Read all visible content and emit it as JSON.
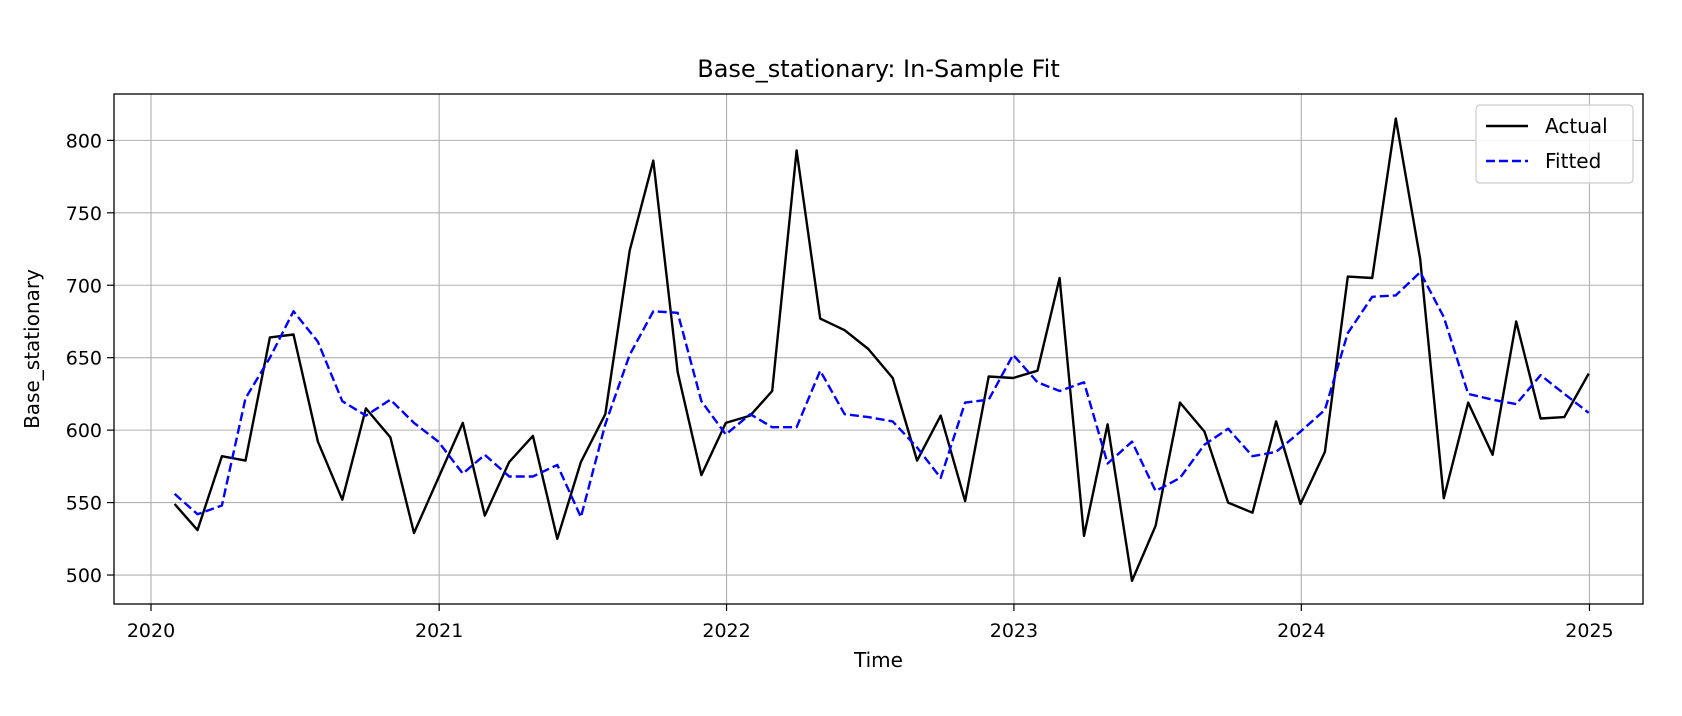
{
  "chart_data": {
    "type": "line",
    "title": "Base_stationary: In-Sample Fit",
    "xlabel": "Time",
    "ylabel": "Base_stationary",
    "x_axis": {
      "type": "date",
      "range": [
        "2019-11-15",
        "2025-03-10"
      ],
      "ticks": [
        "2020-01-01",
        "2021-01-01",
        "2022-01-01",
        "2023-01-01",
        "2024-01-01",
        "2025-01-01"
      ],
      "tick_labels": [
        "2020",
        "2021",
        "2022",
        "2023",
        "2024",
        "2025"
      ]
    },
    "y_axis": {
      "range": [
        480,
        832
      ],
      "ticks": [
        500,
        550,
        600,
        650,
        700,
        750,
        800
      ],
      "tick_labels": [
        "500",
        "550",
        "600",
        "650",
        "700",
        "750",
        "800"
      ]
    },
    "grid": true,
    "legend": {
      "placement": "top-right"
    },
    "x": [
      "2020-01-31",
      "2020-02-29",
      "2020-03-31",
      "2020-04-30",
      "2020-05-31",
      "2020-06-30",
      "2020-07-31",
      "2020-08-31",
      "2020-09-30",
      "2020-10-31",
      "2020-11-30",
      "2020-12-31",
      "2021-01-31",
      "2021-02-28",
      "2021-03-31",
      "2021-04-30",
      "2021-05-31",
      "2021-06-30",
      "2021-07-31",
      "2021-08-31",
      "2021-09-30",
      "2021-10-31",
      "2021-11-30",
      "2021-12-31",
      "2022-01-31",
      "2022-02-28",
      "2022-03-31",
      "2022-04-30",
      "2022-05-31",
      "2022-06-30",
      "2022-07-31",
      "2022-08-31",
      "2022-09-30",
      "2022-10-31",
      "2022-11-30",
      "2022-12-31",
      "2023-01-31",
      "2023-02-28",
      "2023-03-31",
      "2023-04-30",
      "2023-05-31",
      "2023-06-30",
      "2023-07-31",
      "2023-08-31",
      "2023-09-30",
      "2023-10-31",
      "2023-11-30",
      "2023-12-31",
      "2024-01-31",
      "2024-02-29",
      "2024-03-31",
      "2024-04-30",
      "2024-05-31",
      "2024-06-30",
      "2024-07-31",
      "2024-08-31",
      "2024-09-30",
      "2024-10-31",
      "2024-11-30",
      "2024-12-31"
    ],
    "series": [
      {
        "name": "Actual",
        "color": "#000000",
        "style": "solid",
        "values": [
          549,
          531,
          582,
          579,
          664,
          666,
          592,
          552,
          615,
          595,
          529,
          567,
          605,
          541,
          578,
          596,
          525,
          578,
          611,
          724,
          786,
          640,
          569,
          605,
          610,
          627,
          793,
          677,
          669,
          656,
          636,
          579,
          610,
          551,
          637,
          636,
          641,
          705,
          527,
          604,
          496,
          534,
          619,
          599,
          550,
          543,
          606,
          549,
          585,
          706,
          705,
          815,
          718,
          553,
          619,
          583,
          675,
          608,
          609,
          639
        ]
      },
      {
        "name": "Fitted",
        "color": "#0000ff",
        "style": "dashed",
        "values": [
          556,
          542,
          548,
          622,
          650,
          682,
          661,
          620,
          610,
          621,
          605,
          592,
          570,
          583,
          568,
          568,
          576,
          540,
          604,
          652,
          682,
          681,
          620,
          597,
          611,
          602,
          602,
          641,
          611,
          609,
          606,
          588,
          567,
          619,
          621,
          652,
          633,
          627,
          633,
          577,
          592,
          558,
          567,
          590,
          601,
          582,
          585,
          599,
          614,
          667,
          692,
          693,
          709,
          678,
          625,
          621,
          618,
          638,
          625,
          612
        ]
      }
    ]
  }
}
